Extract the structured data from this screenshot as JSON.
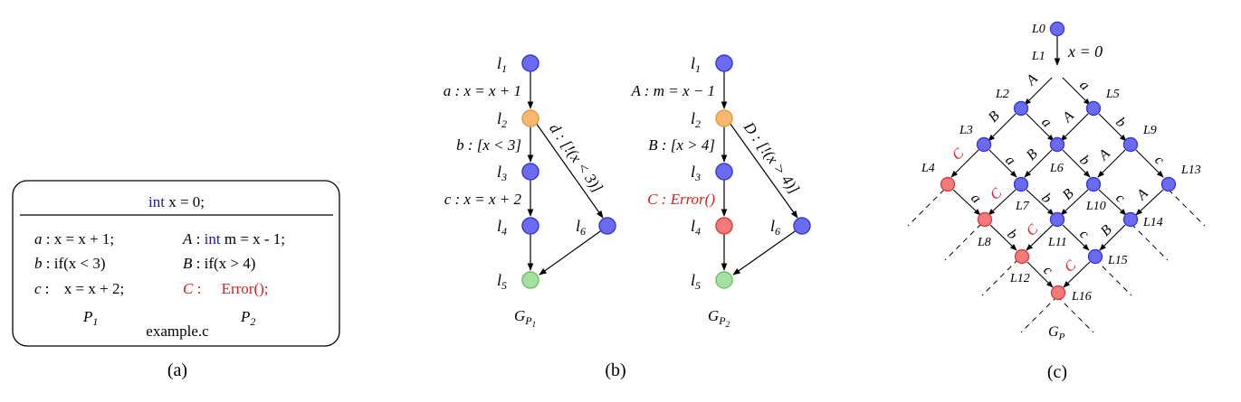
{
  "panel_a": {
    "header": {
      "keyword": "int",
      "rest": " x = 0;"
    },
    "left": [
      {
        "label": "a",
        "sep": " : ",
        "code": "x = x + 1;"
      },
      {
        "label": "b",
        "sep": " : ",
        "code": "if(x < 3)"
      },
      {
        "label": "c",
        "sep": " :  ",
        "code": "x = x + 2;"
      }
    ],
    "right": [
      {
        "label": "A",
        "sep": " : ",
        "keyword": "int",
        "code": " m = x - 1;"
      },
      {
        "label": "B",
        "sep": " : ",
        "code": "if(x > 4)"
      },
      {
        "label": "C",
        "sep": " :  ",
        "code": "Error();"
      }
    ],
    "p1": "P",
    "p1_sub": "1",
    "p2": "P",
    "p2_sub": "2",
    "filename": "example.c",
    "caption": "(a)"
  },
  "panel_b": {
    "g1": {
      "nodes": [
        "l",
        "l",
        "l",
        "l",
        "l",
        "l"
      ],
      "subs": [
        "1",
        "2",
        "3",
        "4",
        "5",
        "6"
      ],
      "edge_a": "a : x = x + 1",
      "edge_b": "b : [x < 3]",
      "edge_c": "c : x = x + 2",
      "edge_d": "d : [!(x < 3)]",
      "name": "G",
      "name_sub": "P",
      "name_subsub": "1"
    },
    "g2": {
      "nodes": [
        "l",
        "l",
        "l",
        "l",
        "l",
        "l"
      ],
      "subs": [
        "1",
        "2",
        "3",
        "4",
        "5",
        "6"
      ],
      "edge_a": "A : m = x − 1",
      "edge_b": "B : [x > 4]",
      "edge_c": "C : Error()",
      "edge_d": "D : [!(x > 4)]",
      "name": "G",
      "name_sub": "P",
      "name_subsub": "2"
    },
    "caption": "(b)"
  },
  "panel_c": {
    "init_label": "x = 0",
    "name": "G",
    "name_sub": "P",
    "caption": "(c)",
    "node_labels": [
      "L0",
      "L1",
      "L2",
      "L3",
      "L4",
      "L5",
      "L6",
      "L7",
      "L8",
      "L9",
      "L10",
      "L11",
      "L12",
      "L13",
      "L14",
      "L15",
      "L16"
    ],
    "edge_letters": [
      "a",
      "A",
      "B",
      "a",
      "A",
      "b",
      "C",
      "a",
      "B",
      "b",
      "A",
      "c",
      "a",
      "C",
      "b",
      "B",
      "c",
      "A",
      "b",
      "C",
      "c",
      "B",
      "c",
      "C"
    ]
  },
  "colors": {
    "blue_node": "#6b6bf0",
    "blue_stroke": "#3a3ad6",
    "orange_node": "#f9b870",
    "orange_stroke": "#e59a40",
    "red_node": "#f27a7a",
    "red_stroke": "#d44444",
    "green_node": "#a6e0a0",
    "green_stroke": "#6cc266",
    "keyword_blue": "#1a1aa6",
    "error_red": "#d42020"
  }
}
